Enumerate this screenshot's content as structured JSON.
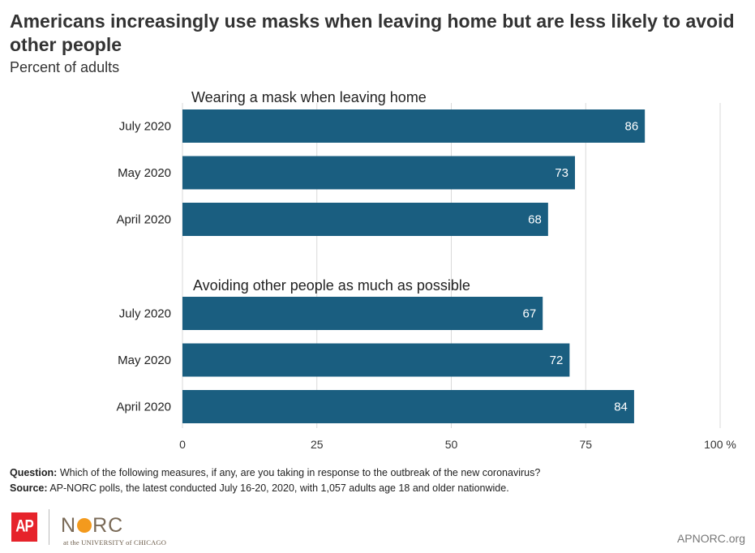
{
  "title": "Americans increasingly use masks when leaving home but are less likely to avoid other people",
  "subtitle": "Percent of adults",
  "chart_data": {
    "type": "bar",
    "orientation": "horizontal",
    "bar_color": "#1a5e80",
    "xlim": [
      0,
      100
    ],
    "ticks": [
      "0",
      "25",
      "50",
      "75",
      "100 %"
    ],
    "tick_values": [
      0,
      25,
      50,
      75,
      100
    ],
    "grid": true,
    "groups": [
      {
        "title": "Wearing a mask when leaving home",
        "categories": [
          "July 2020",
          "May 2020",
          "April 2020"
        ],
        "values": [
          86,
          73,
          68
        ]
      },
      {
        "title": "Avoiding other people as much as possible",
        "categories": [
          "July 2020",
          "May 2020",
          "April 2020"
        ],
        "values": [
          67,
          72,
          84
        ]
      }
    ]
  },
  "footnote": {
    "question_label": "Question:",
    "question_text": "Which of the following measures, if any, are you taking in response to the outbreak of the new coronavirus?",
    "source_label": "Source:",
    "source_text": "AP-NORC polls, the latest conducted July 16-20, 2020,  with 1,057  adults age 18 and older nationwide."
  },
  "logos": {
    "ap": "AP",
    "norc_subtitle": "at the UNIVERSITY of CHICAGO",
    "website": "APNORC.org",
    "ap_color": "#e6232b",
    "norc_accent": "#f39a1d"
  }
}
